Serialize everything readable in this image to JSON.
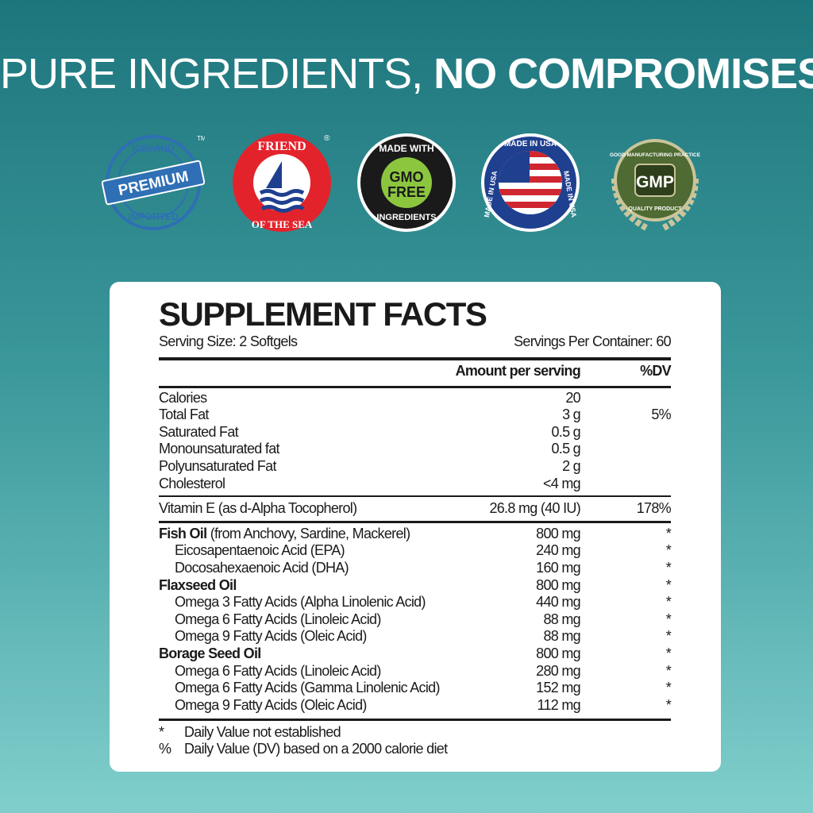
{
  "headline": {
    "light": "PURE INGREDIENTS,",
    "bold": "NO COMPROMISES"
  },
  "badges": [
    {
      "name": "iceland-premium-badge",
      "top": "ICELAND",
      "center": "PREMIUM",
      "bottom": "IMPORTED",
      "mark": "TM",
      "color": "#2f6fb5"
    },
    {
      "name": "friend-of-the-sea-badge",
      "top": "FRIEND",
      "bottom": "OF THE SEA",
      "mark": "®",
      "color": "#e3232c"
    },
    {
      "name": "gmo-free-badge",
      "top": "MADE WITH",
      "center1": "GMO",
      "center2": "FREE",
      "bottom": "INGREDIENTS",
      "color": "#8cc63f"
    },
    {
      "name": "made-in-usa-badge",
      "top": "MADE IN USA",
      "left": "MADE IN USA",
      "right": "MADE IN USA",
      "color": "#1f3f8f"
    },
    {
      "name": "gmp-badge",
      "top": "GOOD MANUFACTURING PRACTICE",
      "center": "GMP",
      "bottom": "QUALITY PRODUCT",
      "color": "#4f6a32"
    }
  ],
  "facts": {
    "title": "SUPPLEMENT FACTS",
    "serving_size": "Serving Size: 2 Softgels",
    "servings_per_container": "Servings Per Container: 60",
    "col_amount": "Amount per serving",
    "col_dv": "%DV",
    "group1": [
      {
        "name": "Calories",
        "amount": "20",
        "dv": ""
      },
      {
        "name": "Total Fat",
        "amount": "3 g",
        "dv": "5%"
      },
      {
        "name": "Saturated Fat",
        "amount": "0.5 g",
        "dv": ""
      },
      {
        "name": "Monounsaturated fat",
        "amount": "0.5 g",
        "dv": ""
      },
      {
        "name": "Polyunsaturated Fat",
        "amount": "2 g",
        "dv": ""
      },
      {
        "name": "Cholesterol",
        "amount": "<4 mg",
        "dv": ""
      }
    ],
    "vitamin_e": {
      "name": "Vitamin E (as d-Alpha Tocopherol)",
      "amount": "26.8 mg (40 IU)",
      "dv": "178%"
    },
    "group3": [
      {
        "name": "Fish Oil",
        "suffix": " (from Anchovy, Sardine, Mackerel)",
        "amount": "800 mg",
        "dv": "*"
      },
      {
        "name": "Eicosapentaenoic Acid (EPA)",
        "amount": "240 mg",
        "dv": "*"
      },
      {
        "name": "Docosahexaenoic Acid (DHA)",
        "amount": "160 mg",
        "dv": "*"
      },
      {
        "name": "Flaxseed Oil",
        "amount": "800 mg",
        "dv": "*"
      },
      {
        "name": "Omega 3 Fatty Acids (Alpha Linolenic Acid)",
        "amount": "440 mg",
        "dv": "*"
      },
      {
        "name": "Omega 6 Fatty Acids (Linoleic Acid)",
        "amount": "88 mg",
        "dv": "*"
      },
      {
        "name": "Omega 9 Fatty Acids (Oleic Acid)",
        "amount": "88 mg",
        "dv": "*"
      },
      {
        "name": "Borage Seed Oil",
        "amount": "800 mg",
        "dv": "*"
      },
      {
        "name": "Omega 6 Fatty Acids (Linoleic Acid)",
        "amount": "280 mg",
        "dv": "*"
      },
      {
        "name": "Omega 6 Fatty Acids (Gamma Linolenic Acid)",
        "amount": "152 mg",
        "dv": "*"
      },
      {
        "name": "Omega 9 Fatty Acids (Oleic Acid)",
        "amount": "112 mg",
        "dv": "*"
      }
    ],
    "footnotes": [
      {
        "symbol": "*",
        "text": "Daily Value not established"
      },
      {
        "symbol": "%",
        "text": "Daily Value (DV) based on a 2000 calorie diet"
      }
    ]
  }
}
